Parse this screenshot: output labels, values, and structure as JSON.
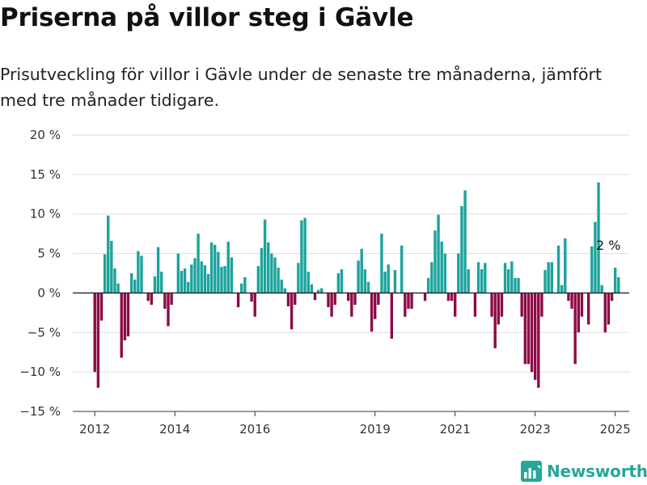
{
  "title": "Priserna på villor steg i Gävle",
  "subtitle": "Prisutveckling för villor i Gävle under de senaste tre månaderna, jämfört med tre månader tidigare.",
  "brand": {
    "name": "Newsworthy",
    "icon": "newsworthy-logo-icon",
    "color": "#26a69a"
  },
  "colors": {
    "positive": "#1ba39c",
    "negative": "#8c0b45",
    "grid": "#dddddd",
    "zero": "#222222"
  },
  "chart_data": {
    "type": "bar",
    "title": "Priserna på villor steg i Gävle",
    "xlabel": "",
    "ylabel": "",
    "ylim": [
      -15,
      20
    ],
    "y_ticks": [
      -15,
      -10,
      -5,
      0,
      5,
      10,
      15,
      20
    ],
    "y_tick_labels": [
      "−15 %",
      "−10 %",
      "−5 %",
      "0 %",
      "5 %",
      "10 %",
      "15 %",
      "20 %"
    ],
    "x_range": [
      2011.45,
      2025.35
    ],
    "x_ticks": [
      2012,
      2014,
      2016,
      2019,
      2021,
      2023,
      2025
    ],
    "x_tick_labels": [
      "2012",
      "2014",
      "2016",
      "2019",
      "2021",
      "2023",
      "2025"
    ],
    "grid": true,
    "annotation": {
      "text": "2 %",
      "x": 2024.83,
      "y": 2
    },
    "series": [
      {
        "start": "2012-01",
        "frequency": "monthly",
        "values": [
          -10,
          -12,
          -3.5,
          4.9,
          9.8,
          6.6,
          3.1,
          1.2,
          -8.2,
          -6,
          -5.5,
          2.5,
          1.7,
          5.3,
          4.7,
          0,
          -1,
          -1.5,
          2.1,
          5.8,
          2.7,
          -2,
          -4.2,
          -1.5,
          0,
          5,
          2.8,
          3.1,
          1.4,
          3.6,
          4.4,
          7.5,
          4,
          3.5,
          2.4,
          6.4,
          6.1,
          5.2,
          3.3,
          3.4,
          6.5,
          4.5,
          0,
          -1.8,
          1.2,
          2,
          0,
          -1.1,
          -3,
          3.4,
          5.7,
          9.3,
          6.4,
          5,
          4.5,
          3.2,
          1.7,
          0.6,
          -1.7,
          -4.6,
          -1.5,
          3.8,
          9.2,
          9.5,
          2.7,
          1.1,
          -0.9,
          0.4,
          0.6,
          0,
          -1.8,
          -3,
          -1.5,
          2.5,
          3,
          0,
          -1,
          -3,
          -1.5,
          4.1,
          5.6,
          3,
          1.4,
          -4.9,
          -3.3,
          -1.5,
          7.5,
          2.7,
          3.6,
          -5.8,
          2.9,
          0,
          6,
          -3,
          -2,
          -2,
          0,
          0,
          0,
          -1,
          1.9,
          3.9,
          7.9,
          9.9,
          6.5,
          5,
          -1,
          -1,
          -3,
          5,
          11,
          13,
          3,
          0,
          -3,
          3.9,
          3,
          3.8,
          0,
          -3,
          -7,
          -4,
          -3,
          3.8,
          3,
          4,
          1.9,
          1.9,
          -3,
          -9,
          -9,
          -10,
          -11,
          -12,
          -3,
          2.9,
          3.9,
          3.9,
          0,
          6,
          1,
          6.9,
          -1,
          -2,
          -9,
          -5,
          -3,
          0,
          -4,
          5.9,
          9,
          14,
          1,
          -5,
          -4,
          -1,
          3.2,
          2
        ]
      }
    ]
  }
}
